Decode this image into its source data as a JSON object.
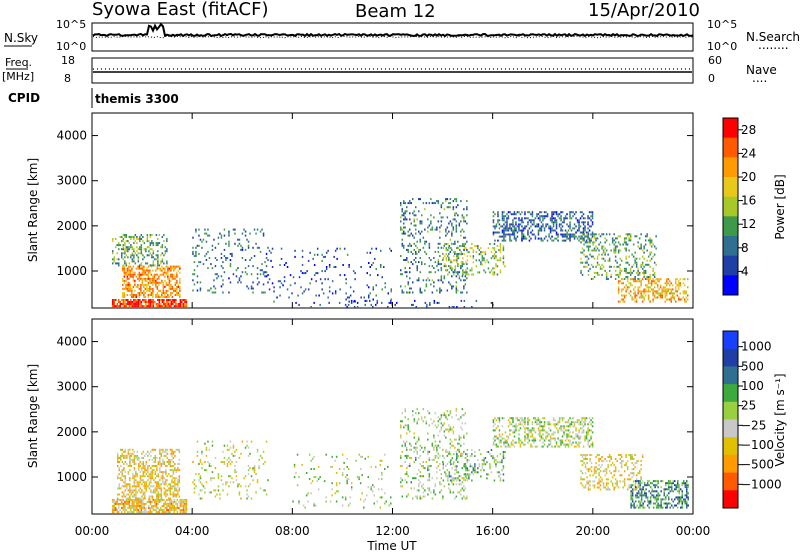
{
  "header": {
    "station": "Syowa East (fitACF)",
    "beam": "Beam 12",
    "date": "15/Apr/2010"
  },
  "top_panels": {
    "nsky_label": "N.Sky",
    "nsearch_label": "N.Search",
    "nsearch_legend": "........",
    "nsky_ticks": [
      "10^5",
      "10^0"
    ],
    "nsearch_ticks": [
      "10^5",
      "10^0"
    ],
    "freq_label": "Freq.",
    "freq_unit": "[MHz]",
    "freq_ticks": [
      "18",
      "8"
    ],
    "nave_label": "Nave",
    "nave_legend": "....",
    "nave_ticks": [
      "60",
      "0"
    ],
    "cpid_label": "CPID",
    "cpid_value": "themis 3300"
  },
  "colors": {
    "power_scale": [
      "#0000ff",
      "#1f3fa6",
      "#2f6f8f",
      "#3c9a4a",
      "#a8c82a",
      "#e8c81a",
      "#ff9a00",
      "#ff5a00",
      "#ff0000"
    ],
    "velocity_scale": [
      "#ff0000",
      "#ff5a00",
      "#ff9a00",
      "#e0c000",
      "#c8c8c8",
      "#98d040",
      "#3caa3c",
      "#2f6f8f",
      "#1f3fa6",
      "#1a40ff"
    ]
  },
  "chart_data": [
    {
      "type": "heatmap",
      "title": "",
      "xlabel": "Time UT",
      "ylabel": "Slant Range [km]",
      "x_ticks": [
        "00:00",
        "04:00",
        "08:00",
        "12:00",
        "16:00",
        "20:00",
        "00:00"
      ],
      "y_ticks": [
        "1000",
        "2000",
        "3000",
        "4000"
      ],
      "xlim": [
        0,
        24
      ],
      "ylim": [
        180,
        4500
      ],
      "colorbar": {
        "label": "Power [dB]",
        "ticks": [
          "4",
          "8",
          "12",
          "16",
          "20",
          "24",
          "28"
        ],
        "range": [
          0,
          30
        ]
      },
      "clusters": [
        {
          "t0": 0.8,
          "t1": 3.8,
          "r0": 200,
          "r1": 350,
          "power": 27,
          "density": 0.8
        },
        {
          "t0": 1.2,
          "t1": 3.5,
          "r0": 400,
          "r1": 1100,
          "power": 22,
          "density": 0.55
        },
        {
          "t0": 0.8,
          "t1": 3.0,
          "r0": 1100,
          "r1": 1800,
          "power": 12,
          "density": 0.35
        },
        {
          "t0": 4.0,
          "t1": 7.0,
          "r0": 500,
          "r1": 1900,
          "power": 8,
          "density": 0.12
        },
        {
          "t0": 7.0,
          "t1": 12.0,
          "r0": 300,
          "r1": 1500,
          "power": 6,
          "density": 0.06
        },
        {
          "t0": 12.3,
          "t1": 15.0,
          "r0": 500,
          "r1": 2600,
          "power": 9,
          "density": 0.18
        },
        {
          "t0": 14.0,
          "t1": 16.5,
          "r0": 900,
          "r1": 1600,
          "power": 14,
          "density": 0.25
        },
        {
          "t0": 16.0,
          "t1": 20.0,
          "r0": 1650,
          "r1": 2300,
          "power": 7,
          "density": 0.4
        },
        {
          "t0": 19.5,
          "t1": 22.5,
          "r0": 800,
          "r1": 1800,
          "power": 12,
          "density": 0.28
        },
        {
          "t0": 21.0,
          "t1": 23.8,
          "r0": 300,
          "r1": 800,
          "power": 20,
          "density": 0.45
        },
        {
          "t0": 8.0,
          "t1": 16.0,
          "r0": 180,
          "r1": 320,
          "power": 5,
          "density": 0.1
        }
      ]
    },
    {
      "type": "heatmap",
      "title": "",
      "xlabel": "Time UT",
      "ylabel": "Slant Range [km]",
      "x_ticks": [
        "00:00",
        "04:00",
        "08:00",
        "12:00",
        "16:00",
        "20:00",
        "00:00"
      ],
      "y_ticks": [
        "1000",
        "2000",
        "3000",
        "4000"
      ],
      "xlim": [
        0,
        24
      ],
      "ylim": [
        180,
        4500
      ],
      "colorbar": {
        "label": "Velocity [m s⁻¹]",
        "ticks": [
          "1000",
          "500",
          "100",
          "25",
          "−25",
          "−100",
          "−500",
          "−1000"
        ],
        "range": [
          -1000,
          1000
        ]
      },
      "clusters": [
        {
          "t0": 0.8,
          "t1": 3.8,
          "r0": 200,
          "r1": 500,
          "velocity": -300,
          "density": 0.7
        },
        {
          "t0": 1.0,
          "t1": 3.5,
          "r0": 500,
          "r1": 1600,
          "velocity": -250,
          "density": 0.45
        },
        {
          "t0": 4.0,
          "t1": 7.0,
          "r0": 500,
          "r1": 1800,
          "velocity": -80,
          "density": 0.12
        },
        {
          "t0": 8.0,
          "t1": 12.0,
          "r0": 300,
          "r1": 1500,
          "velocity": 30,
          "density": 0.06
        },
        {
          "t0": 12.3,
          "t1": 15.0,
          "r0": 500,
          "r1": 2500,
          "velocity": 60,
          "density": 0.18
        },
        {
          "t0": 14.0,
          "t1": 16.5,
          "r0": 900,
          "r1": 1600,
          "velocity": 200,
          "density": 0.22
        },
        {
          "t0": 16.0,
          "t1": 20.0,
          "r0": 1650,
          "r1": 2300,
          "velocity": 0,
          "density": 0.4
        },
        {
          "t0": 19.5,
          "t1": 22.0,
          "r0": 700,
          "r1": 1500,
          "velocity": -200,
          "density": 0.3
        },
        {
          "t0": 21.5,
          "t1": 23.8,
          "r0": 300,
          "r1": 900,
          "velocity": 400,
          "density": 0.45
        }
      ]
    }
  ]
}
